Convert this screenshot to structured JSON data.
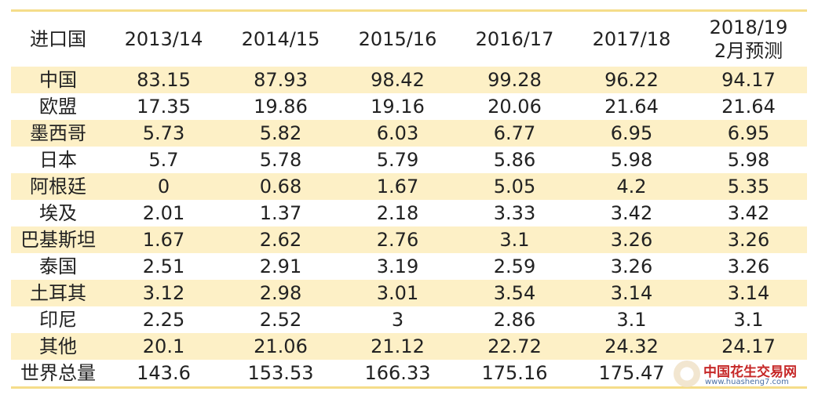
{
  "chart_data": {
    "type": "table",
    "columns": [
      "进口国",
      "2013/14",
      "2014/15",
      "2015/16",
      "2016/17",
      "2017/18",
      "2018/19\n2月预测"
    ],
    "rows": [
      {
        "country": "中国",
        "values": [
          "83.15",
          "87.93",
          "98.42",
          "99.28",
          "96.22",
          "94.17"
        ]
      },
      {
        "country": "欧盟",
        "values": [
          "17.35",
          "19.86",
          "19.16",
          "20.06",
          "21.64",
          "21.64"
        ]
      },
      {
        "country": "墨西哥",
        "values": [
          "5.73",
          "5.82",
          "6.03",
          "6.77",
          "6.95",
          "6.95"
        ]
      },
      {
        "country": "日本",
        "values": [
          "5.7",
          "5.78",
          "5.79",
          "5.86",
          "5.98",
          "5.98"
        ]
      },
      {
        "country": "阿根廷",
        "values": [
          "0",
          "0.68",
          "1.67",
          "5.05",
          "4.2",
          "5.35"
        ]
      },
      {
        "country": "埃及",
        "values": [
          "2.01",
          "1.37",
          "2.18",
          "3.33",
          "3.42",
          "3.42"
        ]
      },
      {
        "country": "巴基斯坦",
        "values": [
          "1.67",
          "2.62",
          "2.76",
          "3.1",
          "3.26",
          "3.26"
        ]
      },
      {
        "country": "泰国",
        "values": [
          "2.51",
          "2.91",
          "3.19",
          "2.59",
          "3.26",
          "3.26"
        ]
      },
      {
        "country": "土耳其",
        "values": [
          "3.12",
          "2.98",
          "3.01",
          "3.54",
          "3.14",
          "3.14"
        ]
      },
      {
        "country": "印尼",
        "values": [
          "2.25",
          "2.52",
          "3",
          "2.86",
          "3.1",
          "3.1"
        ]
      },
      {
        "country": "其他",
        "values": [
          "20.1",
          "21.06",
          "21.12",
          "22.72",
          "24.32",
          "24.17"
        ]
      },
      {
        "country": "世界总量",
        "values": [
          "143.6",
          "153.53",
          "166.33",
          "175.16",
          "175.47",
          ""
        ]
      }
    ]
  },
  "colors": {
    "stripe": "#fdf0c6",
    "rule": "#f5dd8a"
  },
  "watermark": {
    "title": "中国花生交易网",
    "url": "www.huasheng7.com"
  }
}
